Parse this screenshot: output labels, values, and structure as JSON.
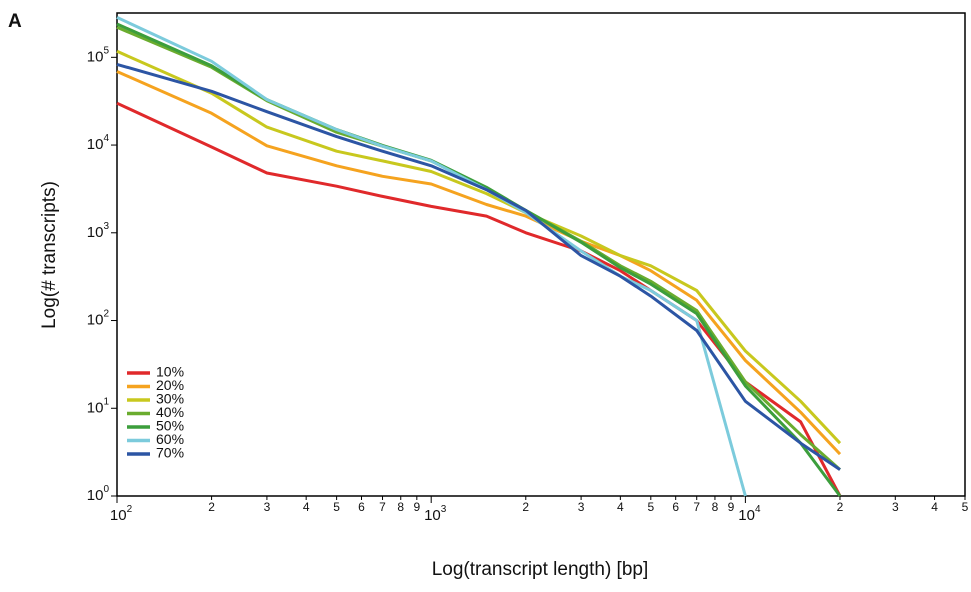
{
  "chart_data": {
    "type": "line",
    "panel_label": "A",
    "x_label": "Log(transcript length) [bp]",
    "y_label": "Log(# transcripts)",
    "log_x": true,
    "log_y": true,
    "legend": "lower left",
    "xlim": [
      100,
      50000
    ],
    "ylim": [
      1,
      320000
    ],
    "xticks": [
      {
        "value": 100,
        "label": "10",
        "exponent": "2"
      },
      {
        "value": 200,
        "label": "2"
      },
      {
        "value": 300,
        "label": "3"
      },
      {
        "value": 400,
        "label": "4"
      },
      {
        "value": 500,
        "label": "5"
      },
      {
        "value": 600,
        "label": "6"
      },
      {
        "value": 700,
        "label": "7"
      },
      {
        "value": 800,
        "label": "8"
      },
      {
        "value": 900,
        "label": "9"
      },
      {
        "value": 1000,
        "label": "10",
        "exponent": "3"
      },
      {
        "value": 2000,
        "label": "2"
      },
      {
        "value": 3000,
        "label": "3"
      },
      {
        "value": 4000,
        "label": "4"
      },
      {
        "value": 5000,
        "label": "5"
      },
      {
        "value": 6000,
        "label": "6"
      },
      {
        "value": 7000,
        "label": "7"
      },
      {
        "value": 8000,
        "label": "8"
      },
      {
        "value": 9000,
        "label": "9"
      },
      {
        "value": 10000,
        "label": "10",
        "exponent": "4"
      },
      {
        "value": 20000,
        "label": "2"
      },
      {
        "value": 30000,
        "label": "3"
      },
      {
        "value": 40000,
        "label": "4"
      },
      {
        "value": 50000,
        "label": "5"
      }
    ],
    "yticks": [
      {
        "value": 1,
        "label": "10",
        "exponent": "0"
      },
      {
        "value": 10,
        "label": "10",
        "exponent": "1"
      },
      {
        "value": 100,
        "label": "10",
        "exponent": "2"
      },
      {
        "value": 1000,
        "label": "10",
        "exponent": "3"
      },
      {
        "value": 10000,
        "label": "10",
        "exponent": "4"
      },
      {
        "value": 100000,
        "label": "10",
        "exponent": "5"
      }
    ],
    "x": [
      100,
      200,
      300,
      500,
      700,
      1000,
      1500,
      2000,
      3000,
      4000,
      5000,
      7000,
      10000,
      15000,
      20000
    ],
    "series": [
      {
        "name": "10%",
        "color": "#e0292b",
        "values": [
          30000,
          9500,
          4800,
          3400,
          2600,
          2000,
          1550,
          1000,
          620,
          370,
          220,
          100,
          20,
          7,
          1
        ]
      },
      {
        "name": "20%",
        "color": "#f5a31f",
        "values": [
          69000,
          23000,
          9800,
          5800,
          4400,
          3600,
          2100,
          1550,
          800,
          550,
          370,
          170,
          35,
          9,
          3
        ]
      },
      {
        "name": "30%",
        "color": "#c8c81e",
        "values": [
          117000,
          39000,
          16000,
          8500,
          6600,
          5000,
          2800,
          1700,
          920,
          550,
          420,
          220,
          45,
          12,
          4
        ]
      },
      {
        "name": "40%",
        "color": "#6aac2e",
        "values": [
          220000,
          77000,
          32000,
          14000,
          9700,
          6600,
          3200,
          1800,
          800,
          420,
          280,
          130,
          20,
          5,
          2
        ]
      },
      {
        "name": "50%",
        "color": "#3c9e3c",
        "values": [
          240000,
          80000,
          33000,
          15000,
          9900,
          6700,
          3300,
          1800,
          780,
          400,
          260,
          120,
          18,
          4,
          1
        ]
      },
      {
        "name": "60%",
        "color": "#7ccbdc",
        "values": [
          285000,
          90000,
          33000,
          15000,
          9700,
          6600,
          3100,
          1700,
          620,
          320,
          220,
          100,
          1,
          null,
          null
        ]
      },
      {
        "name": "70%",
        "color": "#2c55a4",
        "values": [
          83000,
          41000,
          24000,
          12500,
          8500,
          5800,
          3100,
          1800,
          550,
          320,
          190,
          77,
          12,
          4,
          2
        ]
      }
    ]
  }
}
